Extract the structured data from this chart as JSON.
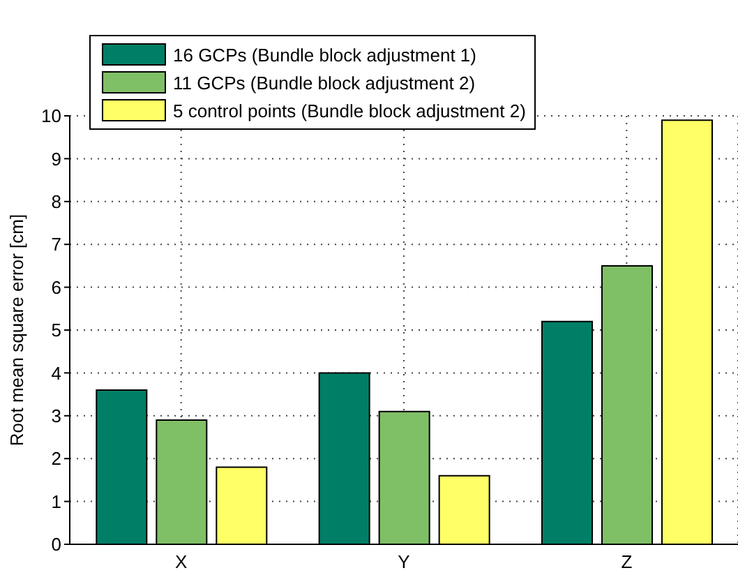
{
  "chart_data": {
    "type": "bar",
    "ylabel": "Root mean square error [cm]",
    "categories": [
      "X",
      "Y",
      "Z"
    ],
    "series": [
      {
        "name": "16 GCPs (Bundle block adjustment 1)",
        "color": "#007f66",
        "values": [
          3.6,
          4.0,
          5.2
        ]
      },
      {
        "name": "11 GCPs (Bundle block adjustment 2)",
        "color": "#7fbf66",
        "values": [
          2.9,
          3.1,
          6.5
        ]
      },
      {
        "name": "5 control points (Bundle block adjustment 2)",
        "color": "#ffff66",
        "values": [
          1.8,
          1.6,
          9.9
        ]
      }
    ],
    "ylim": [
      0,
      10
    ],
    "yticks": [
      0,
      1,
      2,
      3,
      4,
      5,
      6,
      7,
      8,
      9,
      10
    ],
    "grid": true,
    "legend": "top left"
  }
}
